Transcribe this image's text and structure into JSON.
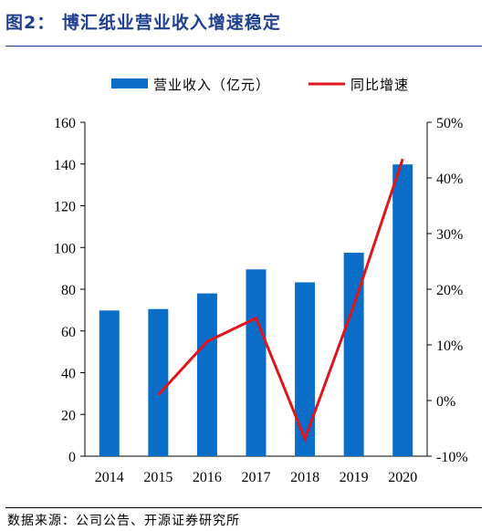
{
  "figure": {
    "title": "图2：  博汇纸业营业收入增速稳定",
    "source": "数据来源：公司公告、开源证券研究所"
  },
  "colors": {
    "bar": "#0a6ec9",
    "line": "#e0141c",
    "title": "#1f3f8f"
  },
  "chart_data": {
    "type": "bar+line",
    "categories": [
      "2014",
      "2015",
      "2016",
      "2017",
      "2018",
      "2019",
      "2020"
    ],
    "series": [
      {
        "name": "营业收入（亿元）",
        "type": "bar",
        "axis": "left",
        "values": [
          69.8,
          70.5,
          78.0,
          89.5,
          83.3,
          97.5,
          139.8
        ]
      },
      {
        "name": "同比增速",
        "type": "line",
        "axis": "right",
        "values": [
          null,
          1.0,
          10.6,
          14.8,
          -6.9,
          17.1,
          43.4
        ]
      }
    ],
    "left_axis": {
      "ticks": [
        "0",
        "20",
        "40",
        "60",
        "80",
        "100",
        "120",
        "140",
        "160"
      ],
      "range": [
        0,
        160
      ]
    },
    "right_axis": {
      "ticks": [
        "-10%",
        "0%",
        "10%",
        "20%",
        "30%",
        "40%",
        "50%"
      ],
      "range": [
        -10,
        50
      ]
    },
    "legend_position": "top",
    "grid": false
  }
}
